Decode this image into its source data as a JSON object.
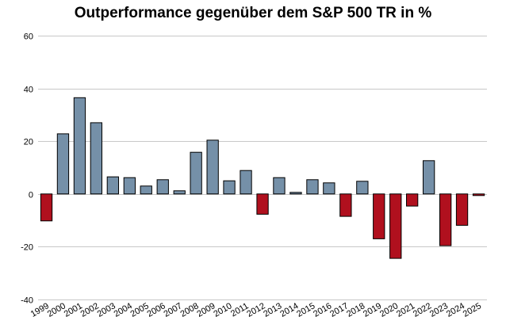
{
  "chart_data": {
    "type": "bar",
    "title": "Outperformance gegenüber dem S&P 500 TR in %",
    "xlabel": "",
    "ylabel": "",
    "ylim": [
      -40,
      60
    ],
    "yticks": [
      60,
      40,
      20,
      0,
      -20,
      -40
    ],
    "grid": true,
    "legend": "none",
    "categories": [
      "1999",
      "2000",
      "2001",
      "2002",
      "2003",
      "2004",
      "2005",
      "2006",
      "2007",
      "2008",
      "2009",
      "2010",
      "2011",
      "2012",
      "2013",
      "2014",
      "2015",
      "2016",
      "2017",
      "2018",
      "2019",
      "2020",
      "2021",
      "2022",
      "2023",
      "2024",
      "2025"
    ],
    "values": [
      -10.2,
      22.8,
      36.5,
      27.0,
      6.5,
      6.2,
      3.0,
      5.4,
      1.2,
      15.8,
      20.4,
      5.0,
      8.9,
      -7.7,
      6.2,
      0.6,
      5.4,
      4.2,
      -8.5,
      4.8,
      -17.0,
      -24.4,
      -4.6,
      12.6,
      -19.6,
      -11.9,
      -0.6
    ],
    "colors": {
      "positive": "#7590a8",
      "negative": "#b0101e",
      "grid": "#c8c8c8"
    }
  }
}
